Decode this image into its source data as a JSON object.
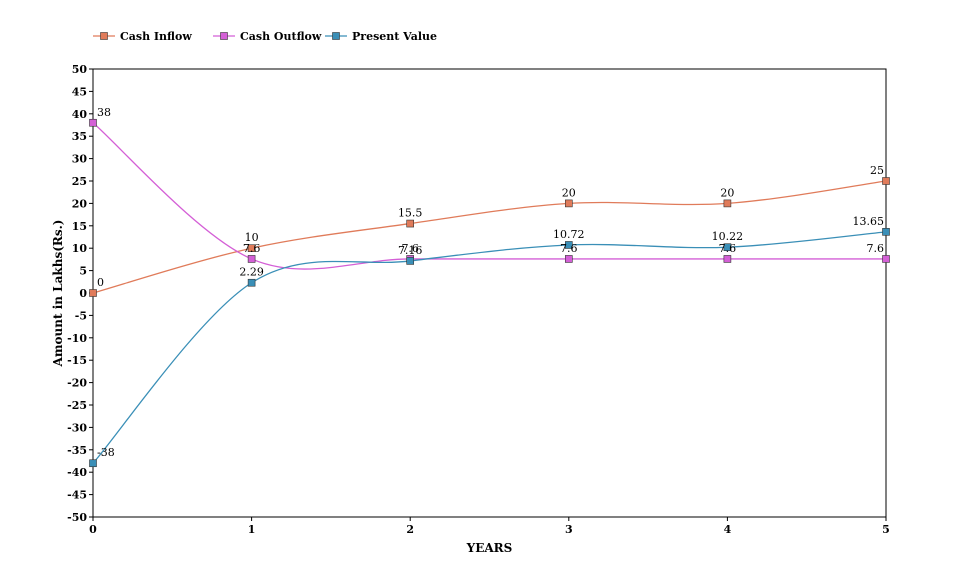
{
  "chart_data": {
    "type": "line",
    "title": "",
    "xlabel": "YEARS",
    "ylabel": "Amount in Lakhs(Rs.)",
    "x": [
      0,
      1,
      2,
      3,
      4,
      5
    ],
    "xticks": [
      "0",
      "1",
      "2",
      "3",
      "4",
      "5"
    ],
    "ylim": [
      -50,
      50
    ],
    "ytick_step": 5,
    "grid": false,
    "legend": "top-left",
    "smooth": true,
    "series": [
      {
        "name": "Cash Inflow",
        "color": "#e07b5a",
        "values": [
          0,
          10,
          15.5,
          20,
          20,
          25
        ],
        "labels": [
          "0",
          "10",
          "15.5",
          "20",
          "20",
          "25"
        ]
      },
      {
        "name": "Cash Outflow",
        "color": "#d45fd6",
        "values": [
          38,
          7.6,
          7.6,
          7.6,
          7.6,
          7.6
        ],
        "labels": [
          "38",
          "7.6",
          "7.6",
          "7.6",
          "7.6",
          "7.6"
        ]
      },
      {
        "name": "Present Value",
        "color": "#3a8fb7",
        "values": [
          -38,
          2.29,
          7.16,
          10.72,
          10.22,
          13.65
        ],
        "labels": [
          "-38",
          "2.29",
          "7.16",
          "10.72",
          "10.22",
          "13.65"
        ]
      }
    ]
  }
}
